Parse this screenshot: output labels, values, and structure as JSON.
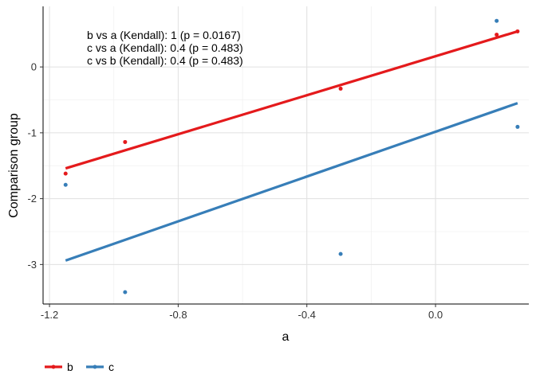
{
  "chart_data": {
    "type": "scatter",
    "xlabel": "a",
    "ylabel": "Comparison group",
    "xlim": [
      -1.22,
      0.29
    ],
    "ylim": [
      -3.6,
      0.92
    ],
    "x_ticks": [
      -1.2,
      -0.8,
      -0.4,
      0.0
    ],
    "x_tick_labels": [
      "-1.2",
      "-0.8",
      "-0.4",
      "0.0"
    ],
    "y_ticks": [
      -3,
      -2,
      -1,
      0
    ],
    "y_tick_labels": [
      "-3",
      "-2",
      "-1",
      "0"
    ],
    "grid": true,
    "legend_position": "bottom-left",
    "annotations": [
      "b vs a (Kendall): 1 (p = 0.0167)",
      "c vs a (Kendall): 0.4 (p = 0.483)",
      "c vs b (Kendall): 0.4 (p = 0.483)"
    ],
    "series": [
      {
        "name": "b",
        "color": "#e41a1c",
        "points": [
          {
            "x": -1.15,
            "y": -1.62
          },
          {
            "x": -0.965,
            "y": -1.14
          },
          {
            "x": -0.295,
            "y": -0.33
          },
          {
            "x": 0.19,
            "y": 0.49
          },
          {
            "x": 0.255,
            "y": 0.54
          }
        ],
        "fit": [
          {
            "x": -1.15,
            "y": -1.54
          },
          {
            "x": 0.255,
            "y": 0.54
          }
        ]
      },
      {
        "name": "c",
        "color": "#377eb8",
        "points": [
          {
            "x": -1.15,
            "y": -1.79
          },
          {
            "x": -0.965,
            "y": -3.42
          },
          {
            "x": -0.295,
            "y": -2.84
          },
          {
            "x": 0.19,
            "y": 0.7
          },
          {
            "x": 0.255,
            "y": -0.91
          }
        ],
        "fit": [
          {
            "x": -1.15,
            "y": -2.94
          },
          {
            "x": 0.255,
            "y": -0.55
          }
        ]
      }
    ]
  }
}
